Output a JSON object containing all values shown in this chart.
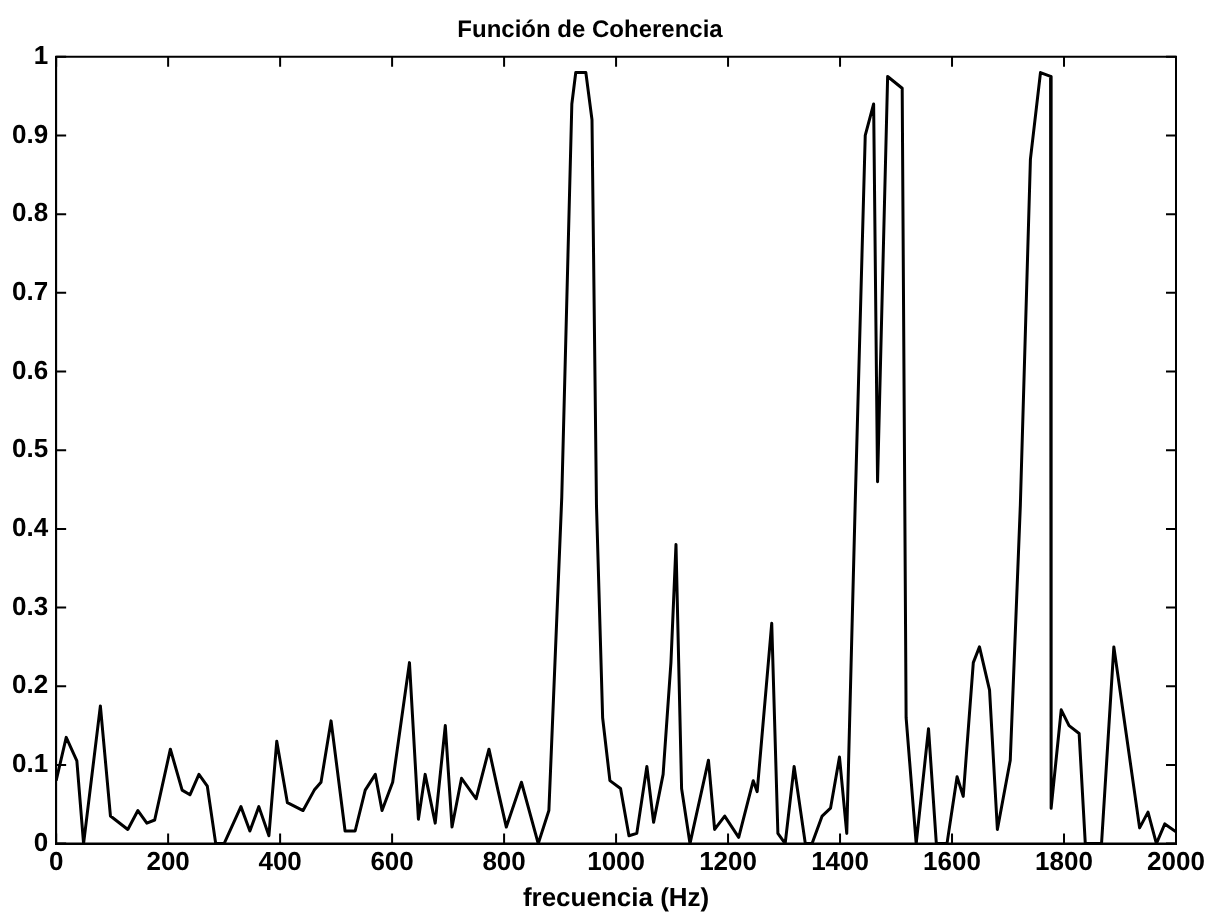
{
  "chart_data": {
    "type": "line",
    "title": "Función de Coherencia",
    "xlabel": "frecuencia (Hz)",
    "series": [
      {
        "color": "#000000",
        "x": [
          0,
          18,
          37,
          49,
          79,
          97,
          128,
          146,
          162,
          176,
          204,
          225,
          239,
          255,
          270,
          285,
          300,
          330,
          346,
          362,
          380,
          394,
          413,
          441,
          461,
          473,
          491,
          516,
          534,
          552,
          570,
          582,
          601,
          631,
          647,
          659,
          677,
          695,
          707,
          724,
          750,
          773,
          789,
          804,
          831,
          861,
          880,
          903,
          921,
          928,
          946,
          957,
          965,
          976,
          989,
          1008,
          1023,
          1037,
          1055,
          1067,
          1084,
          1098,
          1107,
          1117,
          1132,
          1165,
          1176,
          1194,
          1219,
          1245,
          1252,
          1278,
          1289,
          1302,
          1318,
          1338,
          1350,
          1368,
          1383,
          1399,
          1412,
          1427,
          1445,
          1460,
          1467,
          1485,
          1511,
          1518,
          1536,
          1558,
          1572,
          1591,
          1609,
          1620,
          1638,
          1649,
          1667,
          1681,
          1704,
          1722,
          1740,
          1758,
          1776,
          1777,
          1795,
          1809,
          1827,
          1838,
          1850,
          1867,
          1889,
          1911,
          1935,
          1950,
          1965,
          1980,
          2000
        ],
        "values": [
          0.08,
          0.135,
          0.105,
          0,
          0.175,
          0.035,
          0.018,
          0.042,
          0.026,
          0.03,
          0.12,
          0.068,
          0.062,
          0.088,
          0.073,
          0,
          0,
          0.047,
          0.016,
          0.047,
          0.01,
          0.13,
          0.052,
          0.042,
          0.068,
          0.078,
          0.156,
          0.016,
          0.016,
          0.068,
          0.088,
          0.042,
          0.078,
          0.23,
          0.031,
          0.088,
          0.026,
          0.15,
          0.021,
          0.083,
          0.057,
          0.12,
          0.068,
          0.021,
          0.078,
          0,
          0.042,
          0.44,
          0.94,
          0.98,
          0.98,
          0.92,
          0.43,
          0.16,
          0.08,
          0.07,
          0.01,
          0.013,
          0.098,
          0.027,
          0.088,
          0.23,
          0.38,
          0.07,
          0,
          0.106,
          0.018,
          0.035,
          0.008,
          0.08,
          0.066,
          0.28,
          0.013,
          0,
          0.098,
          0,
          0,
          0.035,
          0.045,
          0.11,
          0.013,
          0.43,
          0.9,
          0.94,
          0.46,
          0.975,
          0.96,
          0.16,
          0,
          0.146,
          0,
          0,
          0.085,
          0.06,
          0.23,
          0.25,
          0.195,
          0.018,
          0.106,
          0.43,
          0.87,
          0.98,
          0.975,
          0.045,
          0.17,
          0.15,
          0.14,
          0,
          0,
          0,
          0.25,
          0.14,
          0.02,
          0.04,
          0,
          0.025,
          0.015
        ]
      }
    ],
    "xlim": [
      0,
      2000
    ],
    "xticks": [
      0,
      200,
      400,
      600,
      800,
      1000,
      1200,
      1400,
      1600,
      1800,
      2000
    ],
    "ylim": [
      0,
      1
    ],
    "yticks": [
      0,
      0.1,
      0.2,
      0.3,
      0.4,
      0.5,
      0.6,
      0.7,
      0.8,
      0.9,
      1
    ],
    "grid": false,
    "legend": false,
    "marker": "none",
    "line_style": "solid"
  }
}
